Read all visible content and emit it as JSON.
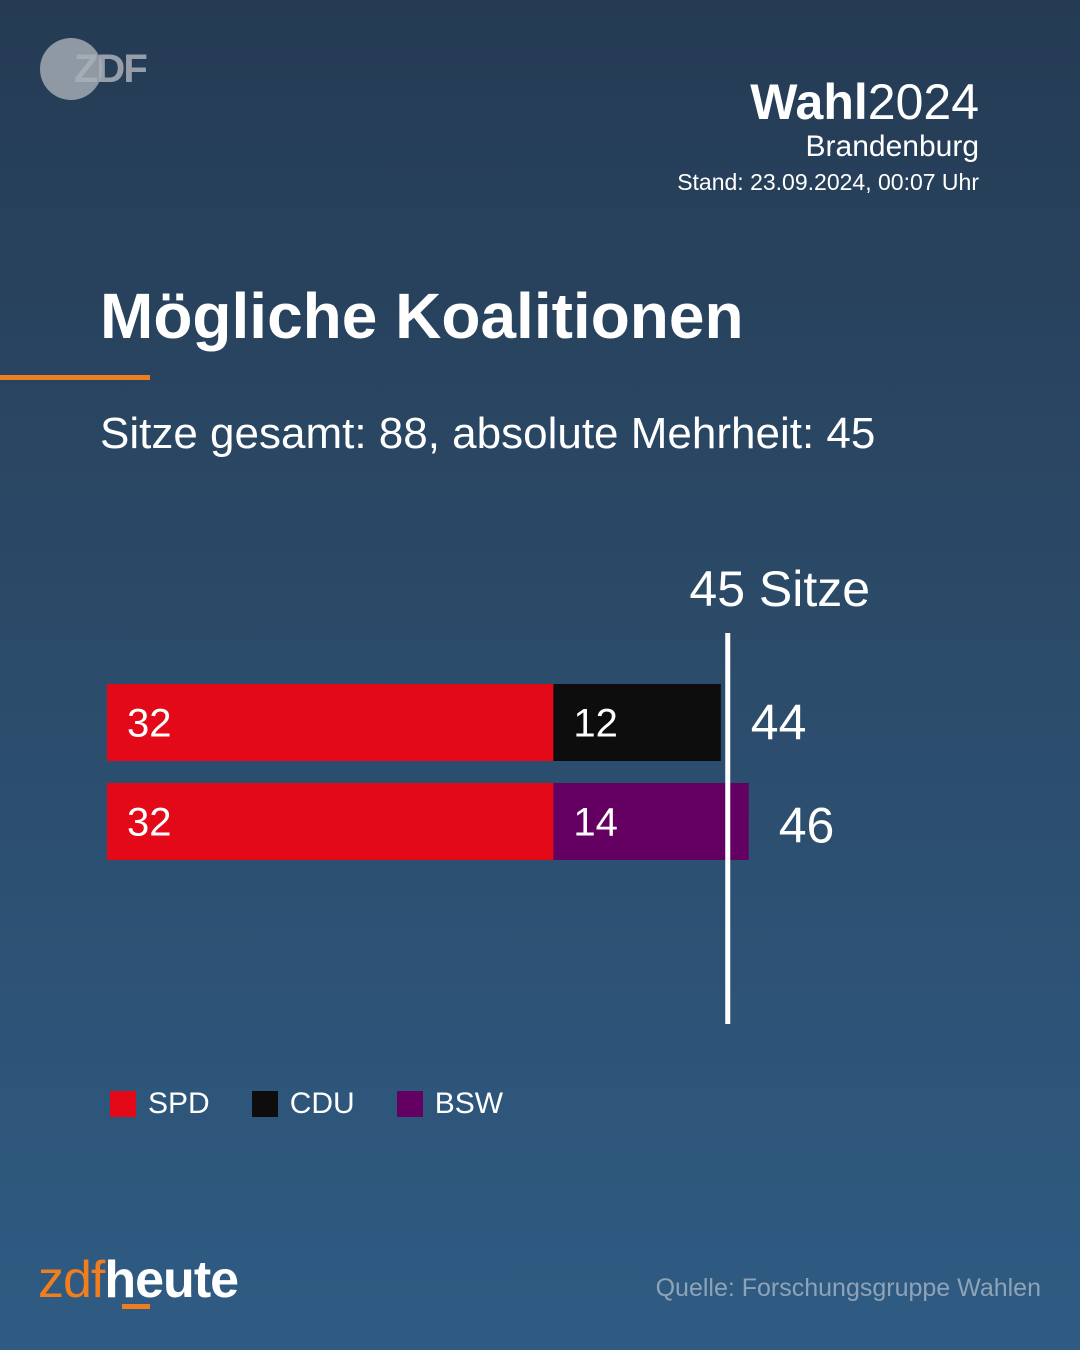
{
  "logo": {
    "text": "ZDF"
  },
  "header": {
    "wahl_bold": "Wahl",
    "wahl_year": "2024",
    "region": "Brandenburg",
    "stand": "Stand: 23.09.2024, 00:07 Uhr"
  },
  "title": "Mögliche Koalitionen",
  "subtitle": "Sitze gesamt: 88, absolute Mehrheit: 45",
  "colors": {
    "accent": "#f07d1e",
    "SPD": "#e30918",
    "CDU": "#0d0d0d",
    "BSW": "#640061"
  },
  "chart_data": {
    "type": "bar",
    "orientation": "horizontal",
    "stacked": true,
    "majority_label": "45 Sitze",
    "majority_value": 45,
    "coalitions": [
      {
        "parties": [
          "SPD",
          "CDU"
        ],
        "values": [
          32,
          12
        ],
        "total": 44
      },
      {
        "parties": [
          "SPD",
          "BSW"
        ],
        "values": [
          32,
          14
        ],
        "total": 46
      }
    ],
    "legend": [
      "SPD",
      "CDU",
      "BSW"
    ]
  },
  "footer": {
    "brand_zdf": "zdf",
    "brand_heute": "heute",
    "source": "Quelle: Forschungsgruppe Wahlen"
  }
}
